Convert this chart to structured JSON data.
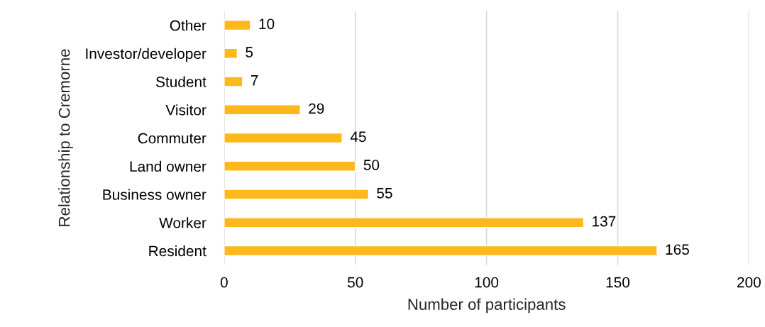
{
  "chart_data": {
    "type": "bar",
    "orientation": "horizontal",
    "categories": [
      "Other",
      "Investor/developer",
      "Student",
      "Visitor",
      "Commuter",
      "Land owner",
      "Business owner",
      "Worker",
      "Resident"
    ],
    "values": [
      10,
      5,
      7,
      29,
      45,
      50,
      55,
      137,
      165
    ],
    "color": "#fdb81b",
    "xlabel": "Number of participants",
    "ylabel": "Relationship to Cremorne",
    "xlim": [
      0,
      200
    ],
    "xticks": [
      0,
      50,
      100,
      150,
      200
    ],
    "grid": "x",
    "data_labels": true,
    "legend": false
  }
}
